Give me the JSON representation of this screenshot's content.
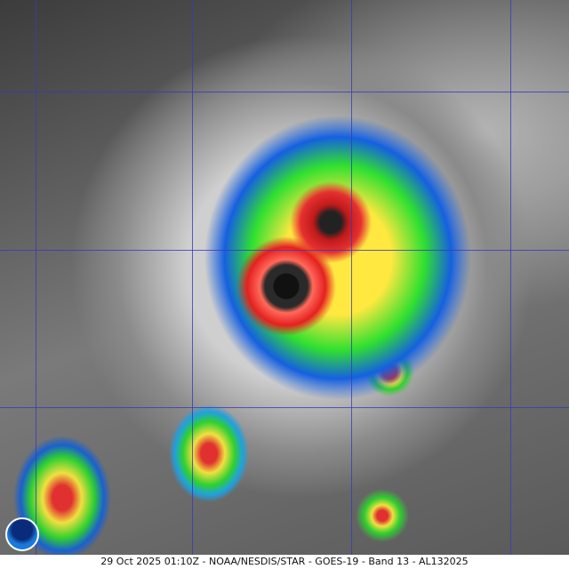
{
  "caption": "29 Oct 2025 01:10Z - NOAA/NESDIS/STAR - GOES-19 - Band 13 - AL132025",
  "logo": {
    "text": "NOAA",
    "icon": "noaa-logo"
  },
  "colors": {
    "eye": "#111111",
    "eyewall": "#e52020",
    "convection": "#ffe840",
    "outer": "#30e030",
    "grid": "#3a3ab8"
  }
}
